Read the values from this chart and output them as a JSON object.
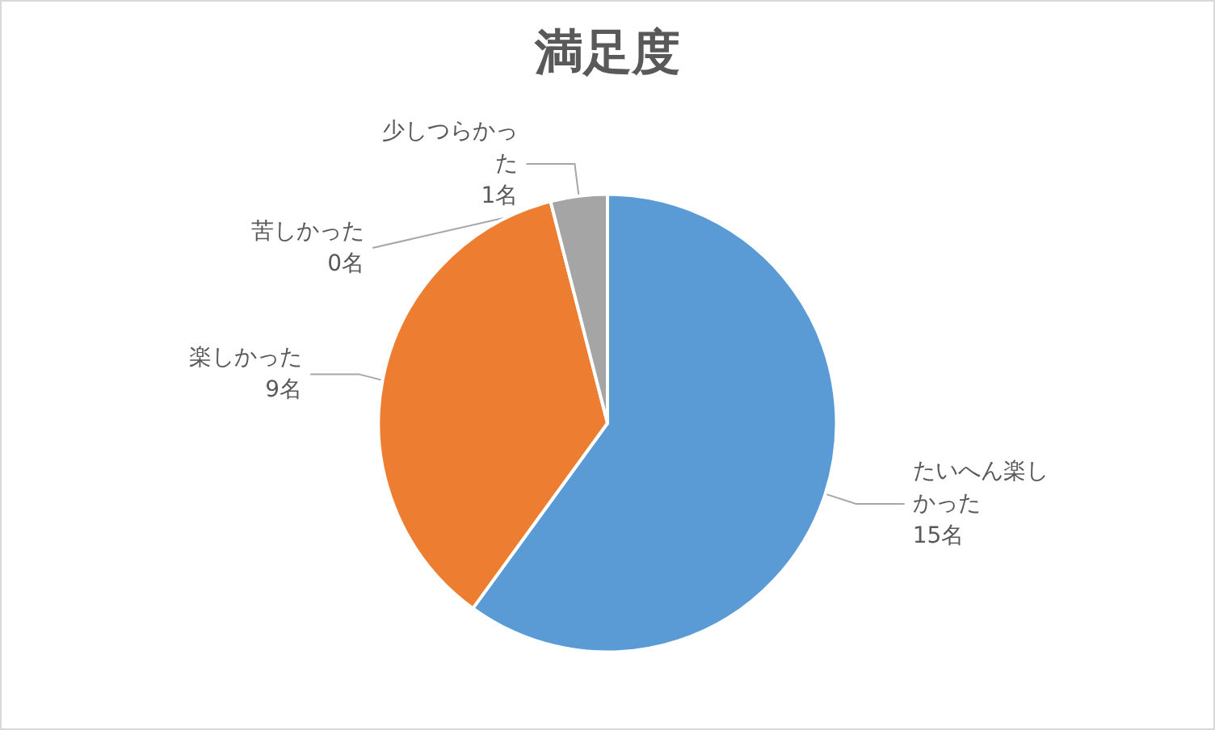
{
  "chart_data": {
    "type": "pie",
    "title": "満足度",
    "categories": [
      "たいへん楽しかった",
      "楽しかった",
      "少しつらかった",
      "苦しかった"
    ],
    "values": [
      15,
      9,
      1,
      0
    ],
    "value_labels": [
      "15名",
      "9名",
      "1名",
      "0名"
    ],
    "colors": [
      "#5b9bd5",
      "#ed7d31",
      "#a5a5a5",
      "#ffc000"
    ],
    "legend": false
  }
}
